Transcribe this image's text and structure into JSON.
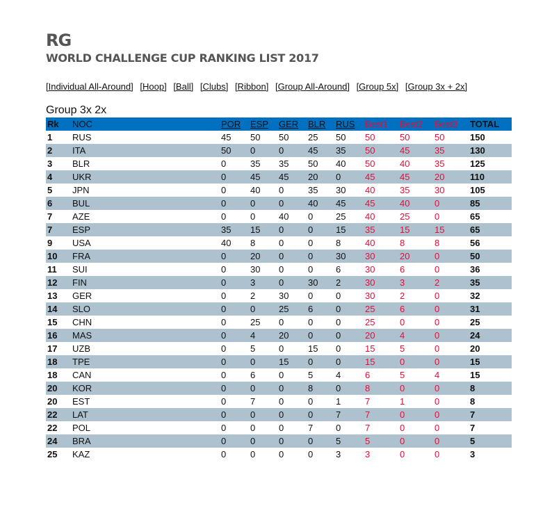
{
  "header": {
    "title": "RG",
    "subtitle": "WORLD CHALLENGE CUP RANKING LIST 2017"
  },
  "nav": [
    "[Individual All-Around]",
    "[Hoop]",
    "[Ball]",
    "[Clubs]",
    "[Ribbon]",
    "[Group All-Around]",
    "[Group 5x]",
    "[Group 3x + 2x]"
  ],
  "table": {
    "caption": "Group 3x 2x",
    "columns": {
      "rk": "Rk",
      "noc": "NOC",
      "events": [
        "POR",
        "ESP",
        "GER",
        "BLR",
        "RUS"
      ],
      "best": [
        "Best1",
        "Best2",
        "Best3"
      ],
      "total": "TOTAL"
    },
    "rows": [
      [
        "1",
        "RUS",
        "45",
        "50",
        "50",
        "25",
        "50",
        "50",
        "50",
        "50",
        "150"
      ],
      [
        "2",
        "ITA",
        "50",
        "0",
        "0",
        "45",
        "35",
        "50",
        "45",
        "35",
        "130"
      ],
      [
        "3",
        "BLR",
        "0",
        "35",
        "35",
        "50",
        "40",
        "50",
        "40",
        "35",
        "125"
      ],
      [
        "4",
        "UKR",
        "0",
        "45",
        "45",
        "20",
        "0",
        "45",
        "45",
        "20",
        "110"
      ],
      [
        "5",
        "JPN",
        "0",
        "40",
        "0",
        "35",
        "30",
        "40",
        "35",
        "30",
        "105"
      ],
      [
        "6",
        "BUL",
        "0",
        "0",
        "0",
        "40",
        "45",
        "45",
        "40",
        "0",
        "85"
      ],
      [
        "7",
        "AZE",
        "0",
        "0",
        "40",
        "0",
        "25",
        "40",
        "25",
        "0",
        "65"
      ],
      [
        "7",
        "ESP",
        "35",
        "15",
        "0",
        "0",
        "15",
        "35",
        "15",
        "15",
        "65"
      ],
      [
        "9",
        "USA",
        "40",
        "8",
        "0",
        "0",
        "8",
        "40",
        "8",
        "8",
        "56"
      ],
      [
        "10",
        "FRA",
        "0",
        "20",
        "0",
        "0",
        "30",
        "30",
        "20",
        "0",
        "50"
      ],
      [
        "11",
        "SUI",
        "0",
        "30",
        "0",
        "0",
        "6",
        "30",
        "6",
        "0",
        "36"
      ],
      [
        "12",
        "FIN",
        "0",
        "3",
        "0",
        "30",
        "2",
        "30",
        "3",
        "2",
        "35"
      ],
      [
        "13",
        "GER",
        "0",
        "2",
        "30",
        "0",
        "0",
        "30",
        "2",
        "0",
        "32"
      ],
      [
        "14",
        "SLO",
        "0",
        "0",
        "25",
        "6",
        "0",
        "25",
        "6",
        "0",
        "31"
      ],
      [
        "15",
        "CHN",
        "0",
        "25",
        "0",
        "0",
        "0",
        "25",
        "0",
        "0",
        "25"
      ],
      [
        "16",
        "MAS",
        "0",
        "4",
        "20",
        "0",
        "0",
        "20",
        "4",
        "0",
        "24"
      ],
      [
        "17",
        "UZB",
        "0",
        "5",
        "0",
        "15",
        "0",
        "15",
        "5",
        "0",
        "20"
      ],
      [
        "18",
        "TPE",
        "0",
        "0",
        "15",
        "0",
        "0",
        "15",
        "0",
        "0",
        "15"
      ],
      [
        "18",
        "CAN",
        "0",
        "6",
        "0",
        "5",
        "4",
        "6",
        "5",
        "4",
        "15"
      ],
      [
        "20",
        "KOR",
        "0",
        "0",
        "0",
        "8",
        "0",
        "8",
        "0",
        "0",
        "8"
      ],
      [
        "20",
        "EST",
        "0",
        "7",
        "0",
        "0",
        "1",
        "7",
        "1",
        "0",
        "8"
      ],
      [
        "22",
        "LAT",
        "0",
        "0",
        "0",
        "0",
        "7",
        "7",
        "0",
        "0",
        "7"
      ],
      [
        "22",
        "POL",
        "0",
        "0",
        "0",
        "7",
        "0",
        "7",
        "0",
        "0",
        "7"
      ],
      [
        "24",
        "BRA",
        "0",
        "0",
        "0",
        "0",
        "5",
        "5",
        "0",
        "0",
        "5"
      ],
      [
        "25",
        "KAZ",
        "0",
        "0",
        "0",
        "0",
        "3",
        "3",
        "0",
        "0",
        "3"
      ]
    ]
  }
}
